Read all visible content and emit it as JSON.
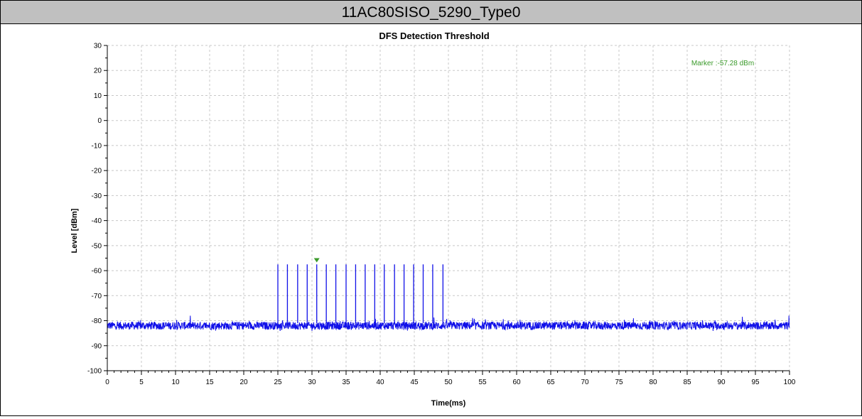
{
  "header": {
    "title": "11AC80SISO_5290_Type0"
  },
  "colors": {
    "trace": "#1010e8",
    "marker": "#3a9a2a",
    "grid": "#c8c8c8",
    "header_bg": "#c0c0c0"
  },
  "chart_data": {
    "type": "line",
    "title": "DFS Detection Threshold",
    "xlabel": "Time(ms)",
    "ylabel": "Level [dBm]",
    "xlim": [
      0,
      100
    ],
    "ylim": [
      -100,
      30
    ],
    "xticks": [
      "0",
      "5",
      "10",
      "15",
      "20",
      "25",
      "30",
      "35",
      "40",
      "45",
      "50",
      "55",
      "60",
      "65",
      "70",
      "75",
      "80",
      "85",
      "90",
      "95",
      "100"
    ],
    "yticks": [
      "30",
      "20",
      "10",
      "0",
      "-10",
      "-20",
      "-30",
      "-40",
      "-50",
      "-60",
      "-70",
      "-80",
      "-90",
      "-100"
    ],
    "grid": true,
    "noise_floor_dbm": -82,
    "series": [
      {
        "pulses": {
          "x": [
            25.0,
            26.4,
            27.9,
            29.3,
            30.7,
            32.1,
            33.5,
            35.0,
            36.4,
            37.8,
            39.2,
            40.6,
            42.1,
            43.5,
            44.9,
            46.3,
            47.7,
            49.2
          ],
          "y": [
            -57.5,
            -57.5,
            -57.5,
            -57.5,
            -57.5,
            -57.5,
            -57.5,
            -57.5,
            -57.5,
            -57.5,
            -57.5,
            -57.5,
            -57.5,
            -57.5,
            -57.5,
            -57.5,
            -57.5,
            -57.5
          ]
        }
      }
    ],
    "marker": {
      "label": "Marker :-57.28 dBm",
      "x": 30.7,
      "y": -57.28
    },
    "legend": "none"
  }
}
